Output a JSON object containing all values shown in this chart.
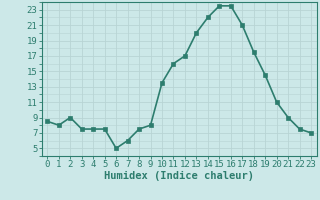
{
  "x": [
    0,
    1,
    2,
    3,
    4,
    5,
    6,
    7,
    8,
    9,
    10,
    11,
    12,
    13,
    14,
    15,
    16,
    17,
    18,
    19,
    20,
    21,
    22,
    23
  ],
  "y": [
    8.5,
    8.0,
    9.0,
    7.5,
    7.5,
    7.5,
    5.0,
    6.0,
    7.5,
    8.0,
    13.5,
    16.0,
    17.0,
    20.0,
    22.0,
    23.5,
    23.5,
    21.0,
    17.5,
    14.5,
    11.0,
    9.0,
    7.5,
    7.0
  ],
  "line_color": "#2d7d6e",
  "bg_color": "#cce8e8",
  "grid_color": "#b8d4d4",
  "axis_color": "#2d7d6e",
  "xlabel": "Humidex (Indice chaleur)",
  "xlim": [
    -0.5,
    23.5
  ],
  "ylim": [
    4,
    24
  ],
  "yticks": [
    5,
    7,
    9,
    11,
    13,
    15,
    17,
    19,
    21,
    23
  ],
  "xticks": [
    0,
    1,
    2,
    3,
    4,
    5,
    6,
    7,
    8,
    9,
    10,
    11,
    12,
    13,
    14,
    15,
    16,
    17,
    18,
    19,
    20,
    21,
    22,
    23
  ],
  "marker_size": 2.5,
  "line_width": 1.2,
  "tick_fontsize": 6.5,
  "xlabel_fontsize": 7.5
}
